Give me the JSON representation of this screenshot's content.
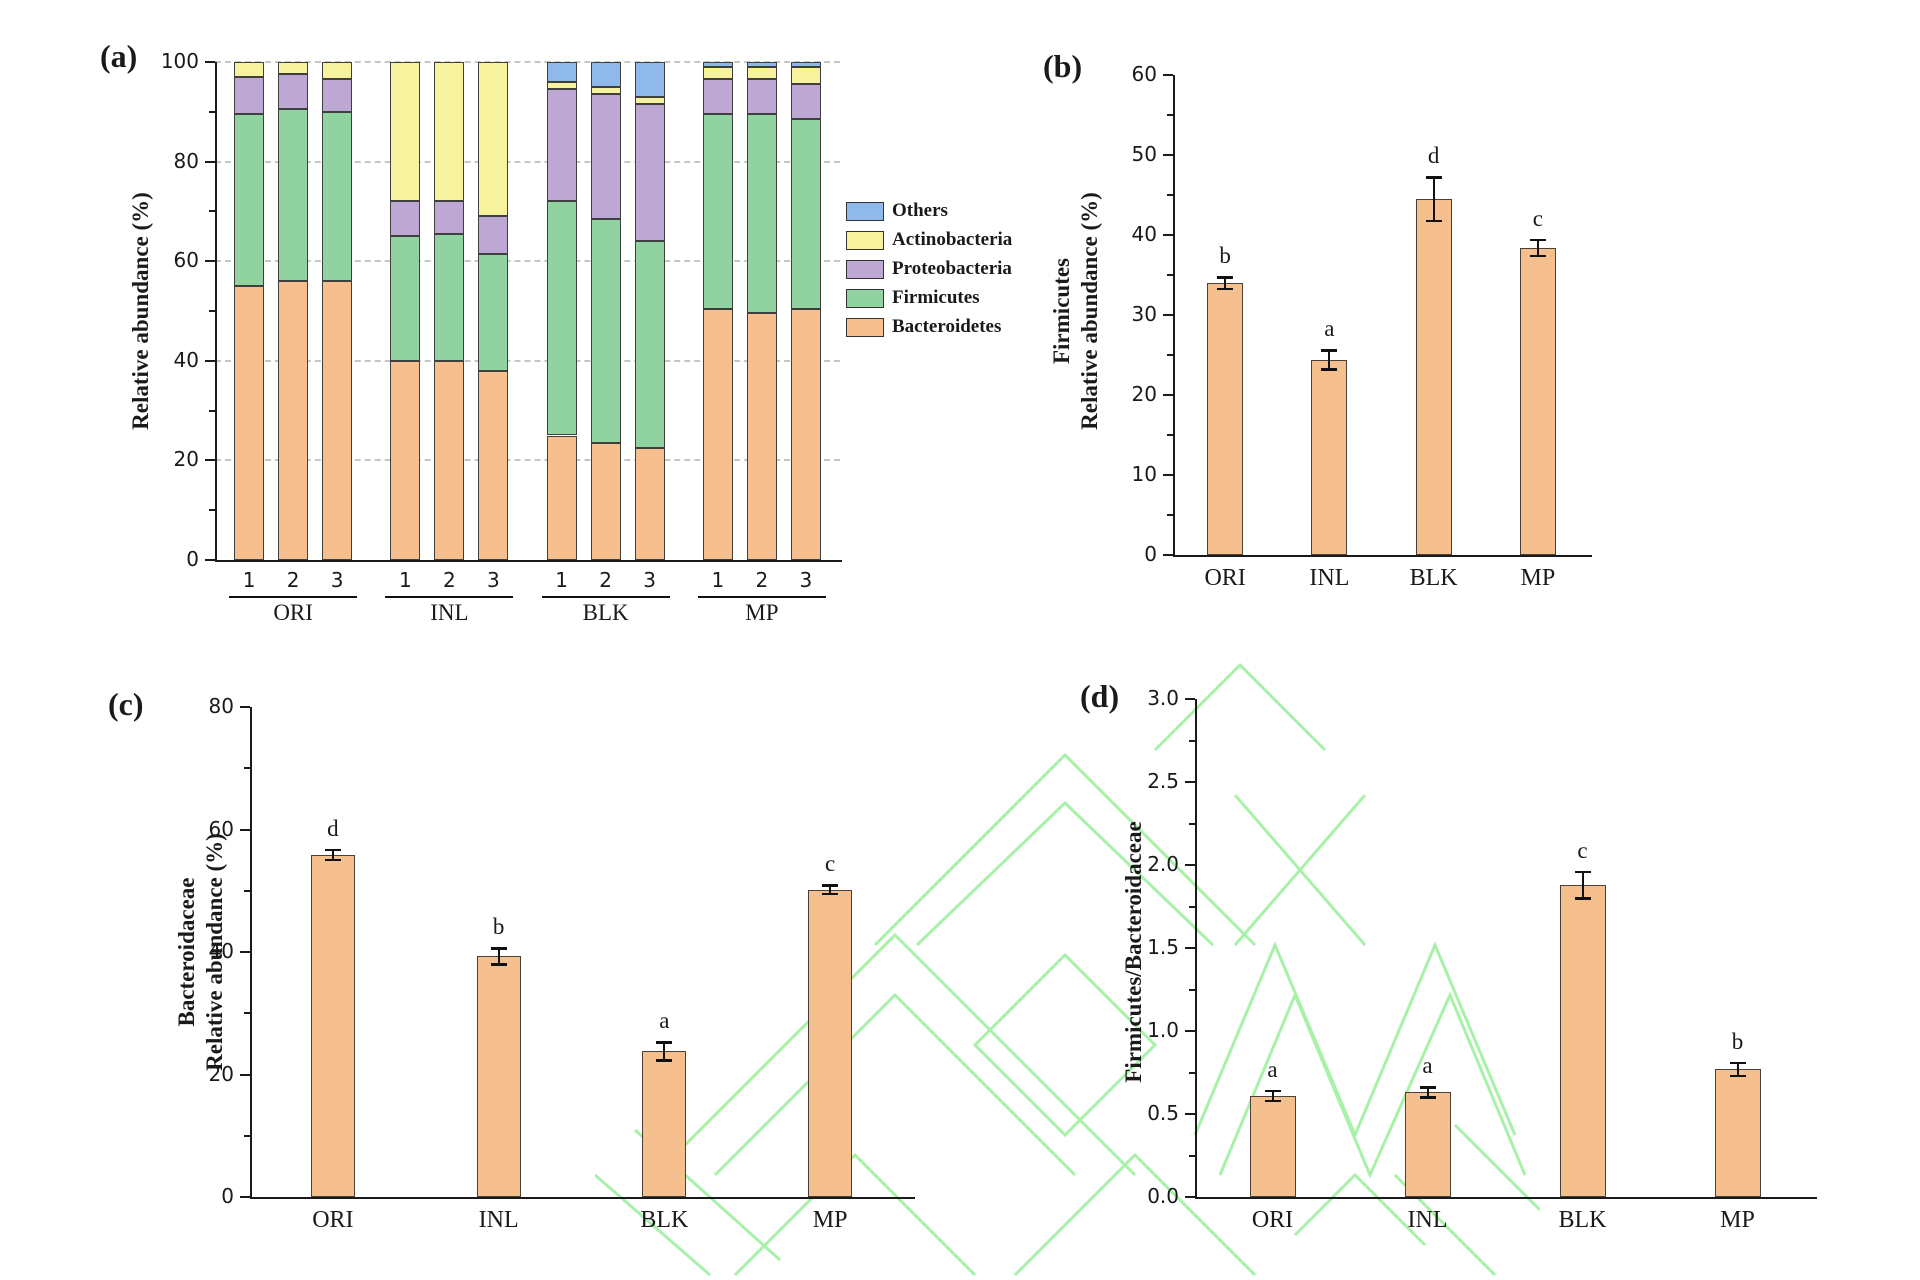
{
  "figure": {
    "background": "#ffffff",
    "watermark_color": "#93ee93"
  },
  "colors": {
    "bar_fill": "#f5c08d",
    "bar_border": "#4a4038",
    "axis": "#1a1a1a",
    "grid_dash": "#c6c6c6",
    "others_blue": "#8fb9e8",
    "actinobacteria_yellow": "#f6f29e",
    "proteobacteria_purple": "#bda8d4",
    "firmicutes_green": "#90d2a0",
    "bacteroidetes_orange": "#f5c08d"
  },
  "chart_data": [
    {
      "type": "stacked_bar",
      "panel": "a",
      "panel_label": "(a)",
      "ylabel": "Relative abundance (%)",
      "ylim": [
        0,
        100
      ],
      "ytick_labels": [
        "0",
        "20",
        "40",
        "60",
        "80",
        "100"
      ],
      "minor_step": 10,
      "grid": true,
      "groups": [
        "ORI",
        "INL",
        "BLK",
        "MP"
      ],
      "replicate_labels": [
        "1",
        "2",
        "3"
      ],
      "legend": [
        {
          "label": "Others",
          "color": "#8fb9e8"
        },
        {
          "label": "Actinobacteria",
          "color": "#f6f29e"
        },
        {
          "label": "Proteobacteria",
          "color": "#bda8d4"
        },
        {
          "label": "Firmicutes",
          "color": "#90d2a0"
        },
        {
          "label": "Bacteroidetes",
          "color": "#f5c08d"
        }
      ],
      "series": [
        {
          "name": "Bacteroidetes",
          "color": "#f5c08d",
          "values": [
            55,
            56,
            56,
            40,
            40,
            38,
            25,
            23.5,
            22.5,
            50.5,
            49.5,
            50.5
          ]
        },
        {
          "name": "Firmicutes",
          "color": "#90d2a0",
          "values": [
            34.5,
            34.5,
            34,
            25,
            25.5,
            23.5,
            47,
            45,
            41.5,
            39,
            40,
            38
          ]
        },
        {
          "name": "Proteobacteria",
          "color": "#bda8d4",
          "values": [
            7.5,
            7,
            6.5,
            7,
            6.5,
            7.5,
            22.5,
            25,
            27.5,
            7,
            7,
            7
          ]
        },
        {
          "name": "Actinobacteria",
          "color": "#f6f29e",
          "values": [
            3,
            2.5,
            3.5,
            28,
            28,
            31,
            1.5,
            1.5,
            1.5,
            2.5,
            2.5,
            3.5
          ]
        },
        {
          "name": "Others",
          "color": "#8fb9e8",
          "values": [
            0,
            0,
            0,
            0,
            0,
            0,
            4,
            5,
            7,
            1,
            1,
            1
          ]
        }
      ]
    },
    {
      "type": "bar",
      "panel": "b",
      "panel_label": "(b)",
      "ylabel_lines": [
        "Firmicutes",
        "Relative abundance (%)"
      ],
      "ylim": [
        0,
        60
      ],
      "ytick_labels": [
        "0",
        "10",
        "20",
        "30",
        "40",
        "50",
        "60"
      ],
      "minor_step": 5,
      "categories": [
        "ORI",
        "INL",
        "BLK",
        "MP"
      ],
      "values": [
        34.0,
        24.4,
        44.5,
        38.4
      ],
      "errors": [
        0.7,
        1.2,
        2.7,
        1.0
      ],
      "sig_letters": [
        "b",
        "a",
        "d",
        "c"
      ]
    },
    {
      "type": "bar",
      "panel": "c",
      "panel_label": "(c)",
      "ylabel_lines": [
        "Bacteroidaceae",
        "Relative abundance (%)"
      ],
      "ylim": [
        0,
        80
      ],
      "ytick_labels": [
        "0",
        "20",
        "40",
        "60",
        "80"
      ],
      "minor_step": 10,
      "categories": [
        "ORI",
        "INL",
        "BLK",
        "MP"
      ],
      "values": [
        55.9,
        39.3,
        23.8,
        50.2
      ],
      "errors": [
        0.8,
        1.3,
        1.5,
        0.7
      ],
      "sig_letters": [
        "d",
        "b",
        "a",
        "c"
      ]
    },
    {
      "type": "bar",
      "panel": "d",
      "panel_label": "(d)",
      "ylabel_lines": [
        "Firmicutes/Bacteroidaceae"
      ],
      "ylim": [
        0,
        3.0
      ],
      "ytick_labels": [
        "0.0",
        "0.5",
        "1.0",
        "1.5",
        "2.0",
        "2.5",
        "3.0"
      ],
      "minor_step": 0.25,
      "categories": [
        "ORI",
        "INL",
        "BLK",
        "MP"
      ],
      "values": [
        0.61,
        0.63,
        1.88,
        0.77
      ],
      "errors": [
        0.03,
        0.03,
        0.08,
        0.04
      ],
      "sig_letters": [
        "a",
        "a",
        "c",
        "b"
      ]
    }
  ]
}
